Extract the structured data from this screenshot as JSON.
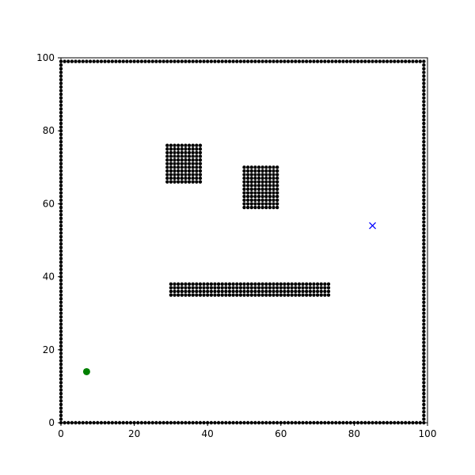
{
  "chart_data": {
    "type": "scatter",
    "title": "",
    "xlabel": "",
    "ylabel": "",
    "xlim": [
      0,
      100
    ],
    "ylim": [
      0,
      100
    ],
    "x_ticks": [
      0,
      20,
      40,
      60,
      80,
      100
    ],
    "y_ticks": [
      0,
      20,
      40,
      60,
      80,
      100
    ],
    "grid": false,
    "obstacles": {
      "color": "#000000",
      "marker": "dot",
      "boundary": {
        "x_range": [
          0,
          99
        ],
        "y_range": [
          0,
          99
        ]
      },
      "blocks": [
        {
          "x_range": [
            29,
            38
          ],
          "y_range": [
            66,
            76
          ]
        },
        {
          "x_range": [
            50,
            59
          ],
          "y_range": [
            59,
            70
          ]
        },
        {
          "x_range": [
            30,
            73
          ],
          "y_range": [
            35,
            38
          ]
        }
      ]
    },
    "start": {
      "x": 7,
      "y": 14,
      "color": "#008000",
      "marker": "circle"
    },
    "goal": {
      "x": 85,
      "y": 54,
      "color": "#0000ff",
      "marker": "x"
    }
  }
}
